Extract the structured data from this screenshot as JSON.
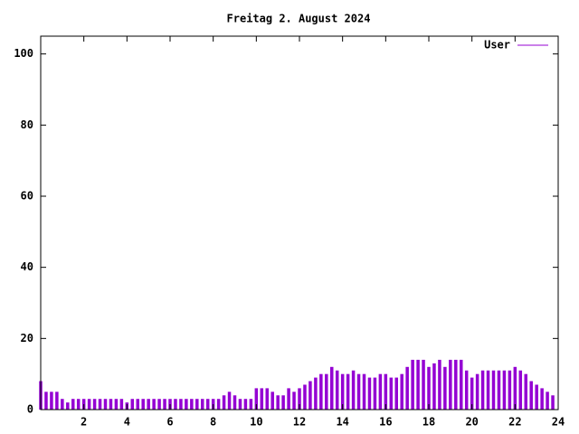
{
  "chart_data": {
    "type": "impulse",
    "title": "Freitag 2. August 2024",
    "series": [
      {
        "name": "User",
        "color": "#9400d3",
        "x": [
          0,
          0.25,
          0.5,
          0.75,
          1,
          1.25,
          1.5,
          1.75,
          2,
          2.25,
          2.5,
          2.75,
          3,
          3.25,
          3.5,
          3.75,
          4,
          4.25,
          4.5,
          4.75,
          5,
          5.25,
          5.5,
          5.75,
          6,
          6.25,
          6.5,
          6.75,
          7,
          7.25,
          7.5,
          7.75,
          8,
          8.25,
          8.5,
          8.75,
          9,
          9.25,
          9.5,
          9.75,
          10,
          10.25,
          10.5,
          10.75,
          11,
          11.25,
          11.5,
          11.75,
          12,
          12.25,
          12.5,
          12.75,
          13,
          13.25,
          13.5,
          13.75,
          14,
          14.25,
          14.5,
          14.75,
          15,
          15.25,
          15.5,
          15.75,
          16,
          16.25,
          16.5,
          16.75,
          17,
          17.25,
          17.5,
          17.75,
          18,
          18.25,
          18.5,
          18.75,
          19,
          19.25,
          19.5,
          19.75,
          20,
          20.25,
          20.5,
          20.75,
          21,
          21.25,
          21.5,
          21.75,
          22,
          22.25,
          22.5,
          22.75,
          23,
          23.25,
          23.5,
          23.75
        ],
        "values": [
          8,
          5,
          5,
          5,
          3,
          2,
          3,
          3,
          3,
          3,
          3,
          3,
          3,
          3,
          3,
          3,
          2,
          3,
          3,
          3,
          3,
          3,
          3,
          3,
          3,
          3,
          3,
          3,
          3,
          3,
          3,
          3,
          3,
          3,
          4,
          5,
          4,
          3,
          3,
          3,
          6,
          6,
          6,
          5,
          4,
          4,
          6,
          5,
          6,
          7,
          8,
          9,
          10,
          10,
          12,
          11,
          10,
          10,
          11,
          10,
          10,
          9,
          9,
          10,
          10,
          9,
          9,
          10,
          12,
          14,
          14,
          14,
          12,
          13,
          14,
          12,
          14,
          14,
          14,
          11,
          9,
          10,
          11,
          11,
          11,
          11,
          11,
          11,
          12,
          11,
          10,
          8,
          7,
          6,
          5,
          4
        ]
      }
    ],
    "xlim": [
      0,
      24
    ],
    "xticks": [
      2,
      4,
      6,
      8,
      10,
      12,
      14,
      16,
      18,
      20,
      22,
      24
    ],
    "ylim": [
      0,
      105
    ],
    "yticks": [
      0,
      20,
      40,
      60,
      80,
      100
    ],
    "legend": "top-right"
  }
}
